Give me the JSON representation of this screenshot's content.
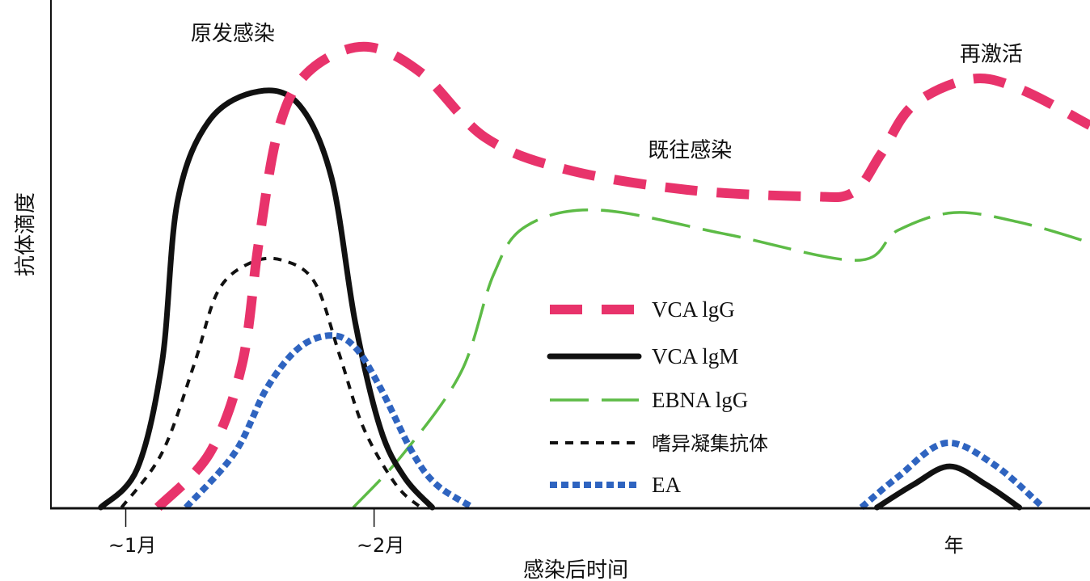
{
  "chart_data": {
    "type": "line",
    "title": "",
    "xlabel": "感染后时间",
    "ylabel": "抗体滴度",
    "xlim": [
      0,
      100
    ],
    "ylim": [
      0,
      100
    ],
    "grid": false,
    "legend_placement": "center-right",
    "x_ticks": [
      {
        "label": "~1月",
        "x": 7.2
      },
      {
        "label": "~2月",
        "x": 31.1
      },
      {
        "label": "年",
        "x": 86.9
      }
    ],
    "annotations": [
      {
        "text": "原发感染",
        "x": 17.5,
        "y": 92
      },
      {
        "text": "既往感染",
        "x": 61.5,
        "y": 69
      },
      {
        "text": "再激活",
        "x": 90.5,
        "y": 88
      }
    ],
    "series": [
      {
        "name": "EBNA lgG",
        "color": "#5dbb46",
        "style": "longdash",
        "segments": [
          [
            [
              29.1,
              0
            ],
            [
              34,
              10.8
            ],
            [
              39.5,
              26.8
            ],
            [
              42.6,
              45.9
            ],
            [
              45.7,
              55.4
            ],
            [
              52.7,
              58.6
            ],
            [
              65.1,
              53.8
            ],
            [
              77.6,
              48.7
            ],
            [
              81.5,
              54.6
            ],
            [
              86.9,
              58.1
            ],
            [
              93.2,
              56.2
            ],
            [
              100,
              52.2
            ]
          ]
        ]
      },
      {
        "name": "嗜异凝集抗体",
        "color": "#111111",
        "style": "dotted",
        "segments": [
          [
            [
              6.8,
              0
            ],
            [
              10.7,
              10.8
            ],
            [
              13.8,
              28.3
            ],
            [
              16.1,
              42.7
            ],
            [
              19.2,
              48.2
            ],
            [
              22.3,
              48.7
            ],
            [
              25.4,
              44.3
            ],
            [
              27.8,
              29.9
            ],
            [
              30.1,
              15.6
            ],
            [
              33.2,
              4.5
            ],
            [
              35.6,
              0
            ]
          ]
        ]
      },
      {
        "name": "VCA lgM",
        "color": "#111111",
        "style": "solid",
        "segments": [
          [
            [
              4.8,
              0
            ],
            [
              8.3,
              7.6
            ],
            [
              10.7,
              28.7
            ],
            [
              12.2,
              60.5
            ],
            [
              15.3,
              76.4
            ],
            [
              20,
              82
            ],
            [
              23.9,
              79.3
            ],
            [
              27,
              65
            ],
            [
              29.3,
              36.3
            ],
            [
              31.7,
              15.6
            ],
            [
              34,
              6
            ],
            [
              36.7,
              0
            ]
          ],
          [
            [
              79.5,
              0
            ],
            [
              83,
              4.5
            ],
            [
              86.5,
              8.1
            ],
            [
              90,
              4.5
            ],
            [
              93.2,
              0
            ]
          ]
        ]
      },
      {
        "name": "EA",
        "color": "#2f64c0",
        "style": "dotted-thick",
        "segments": [
          [
            [
              13,
              0
            ],
            [
              17.7,
              10.8
            ],
            [
              20.8,
              23.6
            ],
            [
              23.9,
              31.5
            ],
            [
              27,
              33.9
            ],
            [
              29.3,
              31.5
            ],
            [
              31.7,
              23.6
            ],
            [
              34.8,
              10.8
            ],
            [
              37.1,
              4.5
            ],
            [
              40.6,
              0
            ]
          ],
          [
            [
              78,
              0
            ],
            [
              81.5,
              6
            ],
            [
              86.1,
              12.7
            ],
            [
              90.8,
              8.4
            ],
            [
              95.5,
              0
            ]
          ]
        ]
      },
      {
        "name": "VCA lgG",
        "color": "#e8336b",
        "style": "dashed",
        "segments": [
          [
            [
              10.3,
              0
            ],
            [
              15.3,
              10.8
            ],
            [
              18.4,
              28.3
            ],
            [
              20,
              52.2
            ],
            [
              21.9,
              74.5
            ],
            [
              24.7,
              85.7
            ],
            [
              30.1,
              90.8
            ],
            [
              35.6,
              85.7
            ],
            [
              41.8,
              72.9
            ],
            [
              49.6,
              66.6
            ],
            [
              61.2,
              62.6
            ],
            [
              72.9,
              61.3
            ],
            [
              77.2,
              62.1
            ],
            [
              79.9,
              69.7
            ],
            [
              83,
              79.3
            ],
            [
              88.5,
              84.4
            ],
            [
              93.2,
              82.5
            ],
            [
              100,
              75.3
            ]
          ]
        ]
      }
    ],
    "legend": [
      "VCA lgG",
      "VCA lgM",
      "EBNA lgG",
      "嗜异凝集抗体",
      "EA"
    ]
  }
}
